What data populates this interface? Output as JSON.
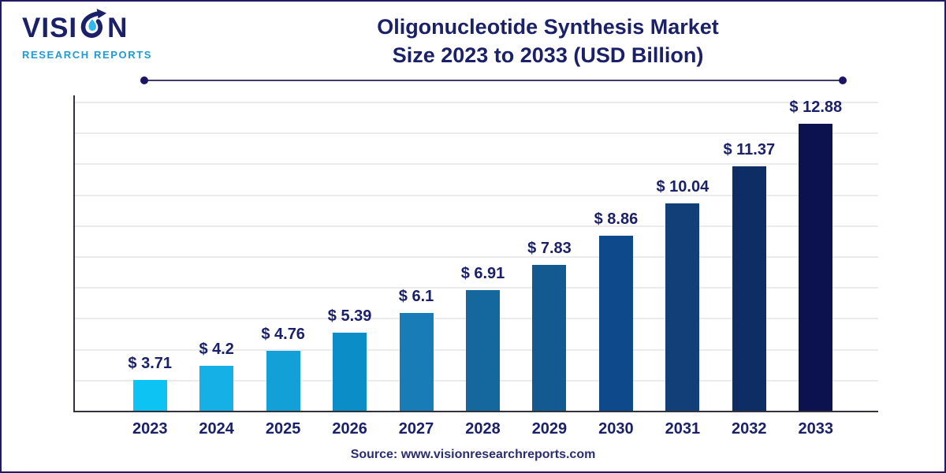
{
  "brand": {
    "logo_text_prefix": "VISI",
    "logo_text_suffix": "N",
    "logo_subtitle": "RESEARCH REPORTS",
    "logo_primary_color": "#1b2168",
    "logo_accent_color": "#1e9ad6"
  },
  "header": {
    "title_line1": "Oligonucleotide Synthesis Market",
    "title_line2": "Size 2023 to 2033 (USD Billion)",
    "title_color": "#1b2168"
  },
  "footer": {
    "source_text": "Source: www.visionresearchreports.com"
  },
  "chart_data": {
    "type": "bar",
    "title": "Oligonucleotide Synthesis Market Size 2023 to 2033 (USD Billion)",
    "unit": "USD Billion",
    "categories": [
      "2023",
      "2024",
      "2025",
      "2026",
      "2027",
      "2028",
      "2029",
      "2030",
      "2031",
      "2032",
      "2033"
    ],
    "values": [
      3.71,
      4.2,
      4.76,
      5.39,
      6.1,
      6.91,
      7.83,
      8.86,
      10.04,
      11.37,
      12.88
    ],
    "value_labels": [
      "$ 3.71",
      "$ 4.2",
      "$ 4.76",
      "$ 5.39",
      "$ 6.1",
      "$ 6.91",
      "$ 7.83",
      "$ 8.86",
      "$ 10.04",
      "$ 11.37",
      "$ 12.88"
    ],
    "bar_colors": [
      "#0dc3f3",
      "#15b1e6",
      "#12a0d6",
      "#0b8ec8",
      "#187db6",
      "#14689e",
      "#135a90",
      "#0e4a8b",
      "#123f78",
      "#0e2d64",
      "#0c124e"
    ],
    "xlabel": "",
    "ylabel": "",
    "ylim": [
      2.6,
      13.9
    ],
    "grid": true,
    "gridline_color": "#ebebee",
    "axis_color": "#33323c",
    "legend": false,
    "label_color": "#1b2168"
  }
}
